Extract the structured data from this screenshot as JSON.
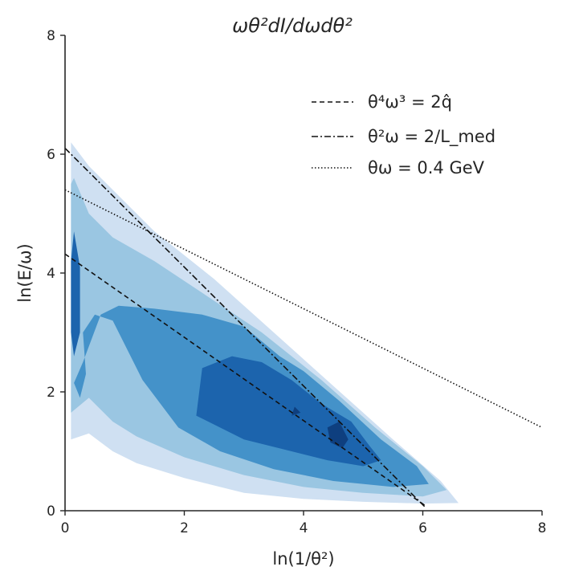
{
  "chart_data": {
    "type": "contour",
    "title": "ωθ²dI/dωdθ²",
    "xlabel": "ln(1/θ²)",
    "ylabel": "ln(E/ω)",
    "xlim": [
      0,
      8
    ],
    "ylim": [
      0,
      8
    ],
    "xticks": [
      0,
      2,
      4,
      6,
      8
    ],
    "yticks": [
      0,
      2,
      4,
      6,
      8
    ],
    "xtick_labels": [
      "0",
      "2",
      "4",
      "6",
      "8"
    ],
    "ytick_labels": [
      "0",
      "2",
      "4",
      "6",
      "8"
    ],
    "contour_levels": [
      {
        "level": 1,
        "color": "#cfe0f2",
        "boundary": [
          [
            0.1,
            1.2
          ],
          [
            0.4,
            1.3
          ],
          [
            0.8,
            1.0
          ],
          [
            1.2,
            0.8
          ],
          [
            2.0,
            0.55
          ],
          [
            3.0,
            0.3
          ],
          [
            4.0,
            0.2
          ],
          [
            5.0,
            0.15
          ],
          [
            6.0,
            0.12
          ],
          [
            6.6,
            0.13
          ],
          [
            6.3,
            0.5
          ],
          [
            5.5,
            1.2
          ],
          [
            4.5,
            2.1
          ],
          [
            3.5,
            3.0
          ],
          [
            2.5,
            3.9
          ],
          [
            1.5,
            4.7
          ],
          [
            0.9,
            5.3
          ],
          [
            0.4,
            5.8
          ],
          [
            0.1,
            6.2
          ]
        ]
      },
      {
        "level": 2,
        "color": "#9ac6e2",
        "boundary": [
          [
            0.1,
            1.65
          ],
          [
            0.4,
            1.9
          ],
          [
            0.8,
            1.5
          ],
          [
            1.2,
            1.25
          ],
          [
            2.0,
            0.9
          ],
          [
            3.0,
            0.6
          ],
          [
            4.0,
            0.4
          ],
          [
            5.0,
            0.3
          ],
          [
            6.0,
            0.24
          ],
          [
            6.4,
            0.35
          ],
          [
            6.0,
            0.75
          ],
          [
            5.2,
            1.4
          ],
          [
            4.3,
            2.2
          ],
          [
            3.3,
            3.0
          ],
          [
            2.4,
            3.6
          ],
          [
            1.5,
            4.2
          ],
          [
            0.8,
            4.6
          ],
          [
            0.4,
            5.0
          ],
          [
            0.15,
            5.6
          ],
          [
            0.1,
            5.5
          ]
        ]
      },
      {
        "level": 3,
        "color": "#4492c9",
        "boundary": [
          [
            0.15,
            2.15
          ],
          [
            0.3,
            2.5
          ],
          [
            0.6,
            3.3
          ],
          [
            0.9,
            3.45
          ],
          [
            1.5,
            3.4
          ],
          [
            2.3,
            3.3
          ],
          [
            3.0,
            3.1
          ],
          [
            3.6,
            2.6
          ],
          [
            4.0,
            2.35
          ],
          [
            4.6,
            1.85
          ],
          [
            5.3,
            1.2
          ],
          [
            5.9,
            0.75
          ],
          [
            6.1,
            0.45
          ],
          [
            5.5,
            0.4
          ],
          [
            4.5,
            0.5
          ],
          [
            3.5,
            0.7
          ],
          [
            2.6,
            1.0
          ],
          [
            1.9,
            1.4
          ],
          [
            1.3,
            2.2
          ],
          [
            0.8,
            3.2
          ],
          [
            0.5,
            3.3
          ],
          [
            0.3,
            3.0
          ],
          [
            0.35,
            2.3
          ],
          [
            0.25,
            1.9
          ]
        ]
      },
      {
        "level": 4,
        "color": "#1c64ad",
        "boundary": [
          [
            0.15,
            2.6
          ],
          [
            0.25,
            3.0
          ],
          [
            0.25,
            4.1
          ],
          [
            0.15,
            4.7
          ],
          [
            0.1,
            4.2
          ],
          [
            0.1,
            3.0
          ]
        ]
      },
      {
        "level": 4,
        "color": "#1c64ad",
        "boundary": [
          [
            2.2,
            1.6
          ],
          [
            2.3,
            2.4
          ],
          [
            2.8,
            2.6
          ],
          [
            3.3,
            2.5
          ],
          [
            3.8,
            2.2
          ],
          [
            4.3,
            1.8
          ],
          [
            4.8,
            1.5
          ],
          [
            5.1,
            1.1
          ],
          [
            5.3,
            0.85
          ],
          [
            5.0,
            0.75
          ],
          [
            4.4,
            0.85
          ],
          [
            3.8,
            1.0
          ],
          [
            3.0,
            1.2
          ]
        ]
      },
      {
        "level": 5,
        "color": "#0e3f7f",
        "boundary": [
          [
            4.4,
            1.4
          ],
          [
            4.6,
            1.5
          ],
          [
            4.75,
            1.2
          ],
          [
            4.65,
            1.05
          ],
          [
            4.45,
            1.15
          ]
        ]
      },
      {
        "level": 5,
        "color": "#0e3f7f",
        "boundary": [
          [
            3.85,
            1.75
          ],
          [
            3.95,
            1.65
          ],
          [
            3.8,
            1.6
          ]
        ]
      }
    ],
    "series": [
      {
        "name": "θ⁴ω³ = 2q̂",
        "style": "dashed",
        "x": [
          0.0,
          6.05
        ],
        "y": [
          4.32,
          0.08
        ]
      },
      {
        "name": "θ²ω = 2/L_med",
        "style": "dashdot",
        "x": [
          0.0,
          6.05
        ],
        "y": [
          6.1,
          0.05
        ]
      },
      {
        "name": "θω = 0.4 GeV",
        "style": "dotted",
        "x": [
          0.0,
          8.0
        ],
        "y": [
          5.4,
          1.4
        ]
      }
    ],
    "legend": {
      "position": "upper-right",
      "entries": [
        "θ⁴ω³ = 2q̂",
        "θ²ω = 2/L_med",
        "θω = 0.4 GeV"
      ]
    }
  }
}
